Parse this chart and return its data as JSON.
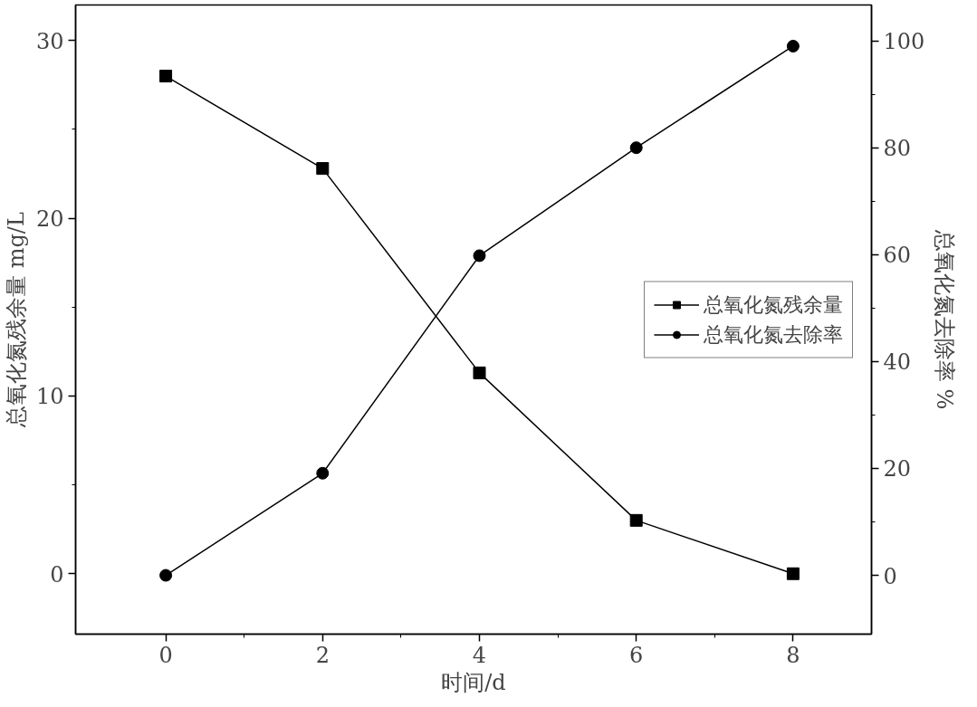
{
  "chart_data": {
    "type": "line",
    "xlabel": "时间/d",
    "ylabel": "总氧化氮残余量 mg/L",
    "y2label": "总氧化氮去除率 %",
    "x": [
      0,
      2,
      4,
      6,
      8
    ],
    "series": [
      {
        "name": "总氧化氮残余量",
        "color": "#000000",
        "marker": "square",
        "values": [
          28,
          22.8,
          11.3,
          3.0,
          0
        ]
      },
      {
        "name": "总氧化氮去除率",
        "color": "#000000",
        "marker": "circle",
        "axis": "y2",
        "values": [
          0,
          19.1,
          59.8,
          80,
          99
        ]
      }
    ],
    "xlim": [
      -1.15,
      9
    ],
    "xticks": [
      0,
      2,
      4,
      6,
      8
    ],
    "ylim": [
      -3.4,
      32
    ],
    "yticks": [
      0,
      10,
      20,
      30
    ],
    "y2lim": [
      -11,
      106.7
    ],
    "y2ticks": [
      0,
      20,
      40,
      60,
      80,
      100
    ],
    "grid": false,
    "legend": "right",
    "line_style": "solid"
  }
}
